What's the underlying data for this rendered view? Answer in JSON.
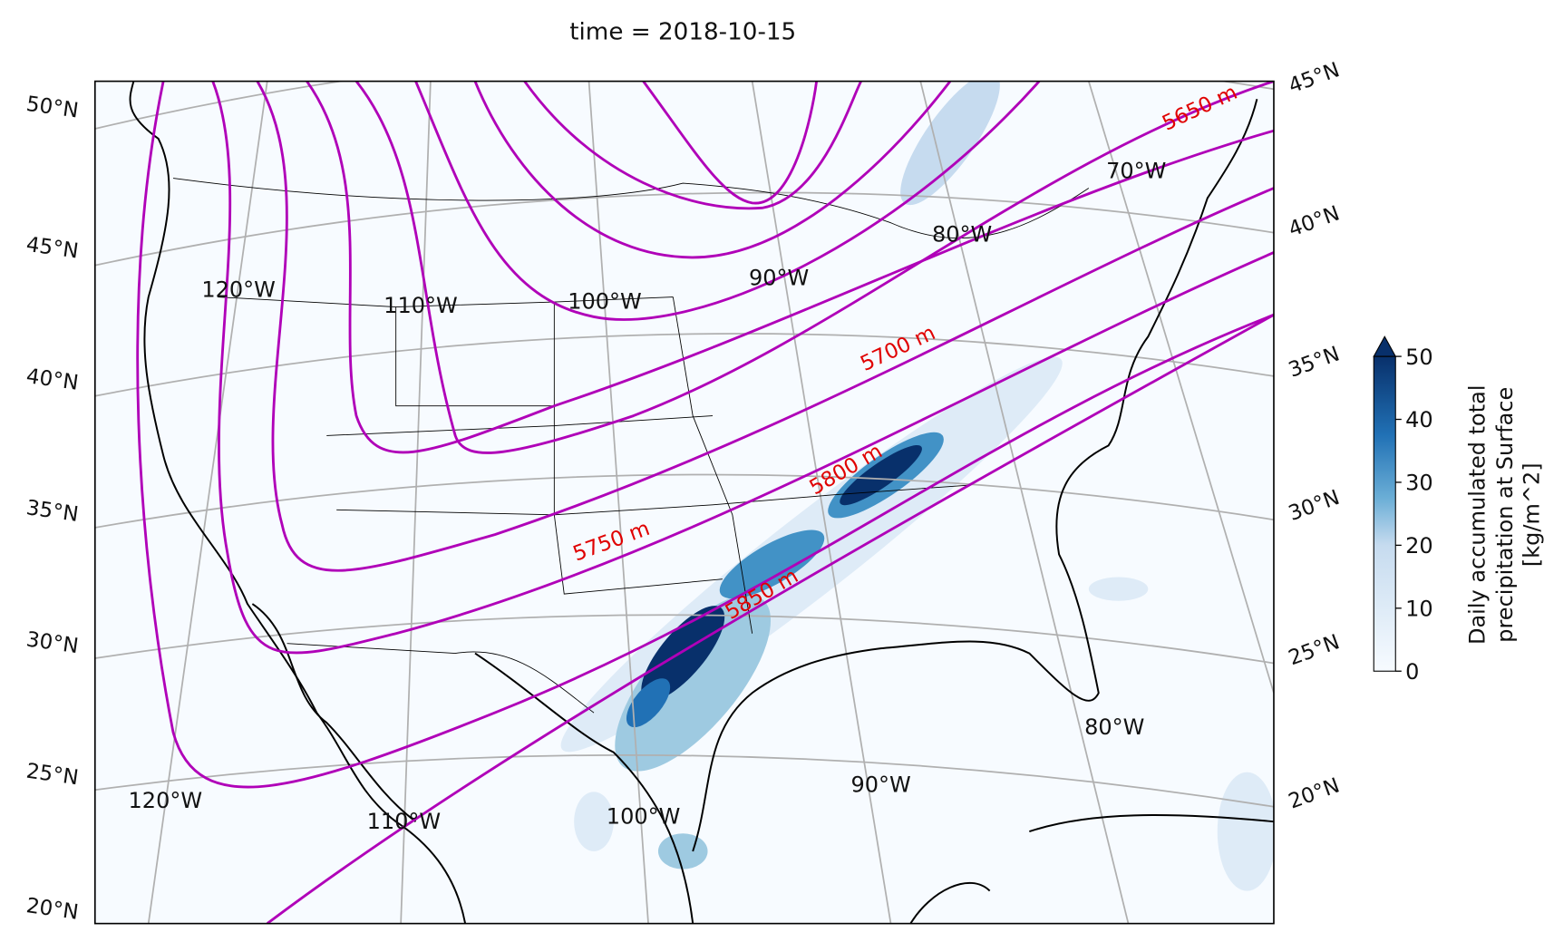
{
  "chart_data": {
    "type": "map",
    "title": "time = 2018-10-15",
    "left_lat_labels": [
      "50°N",
      "45°N",
      "40°N",
      "35°N",
      "30°N",
      "25°N",
      "20°N"
    ],
    "right_lat_labels": [
      "45°N",
      "40°N",
      "35°N",
      "30°N",
      "25°N",
      "20°N"
    ],
    "inner_lon_labels": [
      "120°W",
      "110°W",
      "100°W",
      "90°W",
      "80°W",
      "70°W"
    ],
    "bottom_lon_labels": [
      "120°W",
      "110°W",
      "100°W",
      "90°W",
      "80°W"
    ],
    "contour_labels": [
      "5650 m",
      "5700 m",
      "5750 m",
      "5800 m",
      "5850 m"
    ],
    "contour_color": "#b000b8",
    "contour_label_color": "#e00000",
    "colorbar": {
      "label": [
        "Daily accumulated total",
        "precipitation at Surface",
        "[kg/m^2]"
      ],
      "lim": [
        0,
        50
      ],
      "ticks": [
        0,
        10,
        20,
        30,
        40,
        50
      ]
    }
  }
}
